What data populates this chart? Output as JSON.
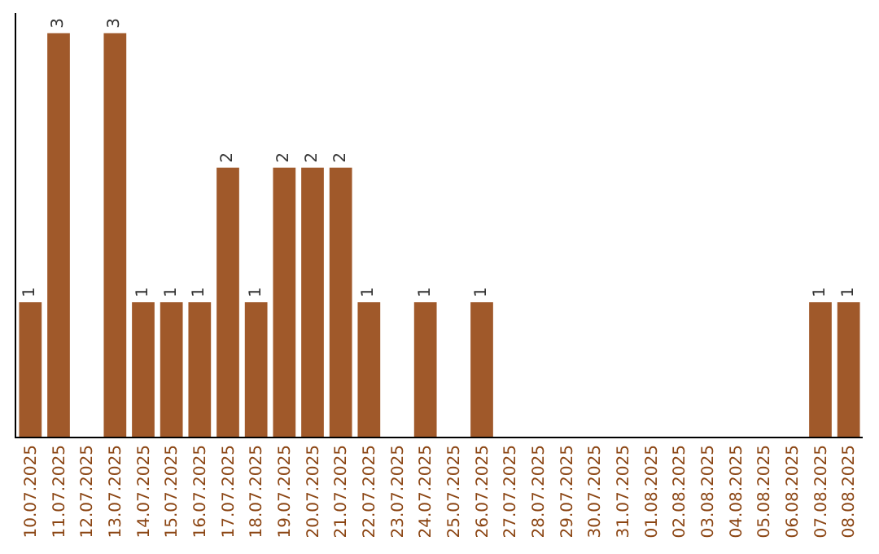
{
  "chart_data": {
    "type": "bar",
    "categories": [
      "10.07.2025",
      "11.07.2025",
      "12.07.2025",
      "13.07.2025",
      "14.07.2025",
      "15.07.2025",
      "16.07.2025",
      "17.07.2025",
      "18.07.2025",
      "19.07.2025",
      "20.07.2025",
      "21.07.2025",
      "22.07.2025",
      "23.07.2025",
      "24.07.2025",
      "25.07.2025",
      "26.07.2025",
      "27.07.2025",
      "28.07.2025",
      "29.07.2025",
      "30.07.2025",
      "31.07.2025",
      "01.08.2025",
      "02.08.2025",
      "03.08.2025",
      "04.08.2025",
      "05.08.2025",
      "06.08.2025",
      "07.08.2025",
      "08.08.2025"
    ],
    "values": [
      1,
      3,
      0,
      3,
      1,
      1,
      1,
      2,
      1,
      2,
      2,
      2,
      1,
      0,
      1,
      0,
      1,
      0,
      0,
      0,
      0,
      0,
      0,
      0,
      0,
      0,
      0,
      0,
      1,
      1
    ],
    "value_labels": [
      "1",
      "3",
      null,
      "3",
      "1",
      "1",
      "1",
      "2",
      "1",
      "2",
      "2",
      "2",
      "1",
      null,
      "1",
      null,
      "1",
      null,
      null,
      null,
      null,
      null,
      null,
      null,
      null,
      null,
      null,
      null,
      "1",
      "1"
    ],
    "color": "#a0592a",
    "ylim": [
      0,
      3.15
    ],
    "tick_labels": "x"
  }
}
